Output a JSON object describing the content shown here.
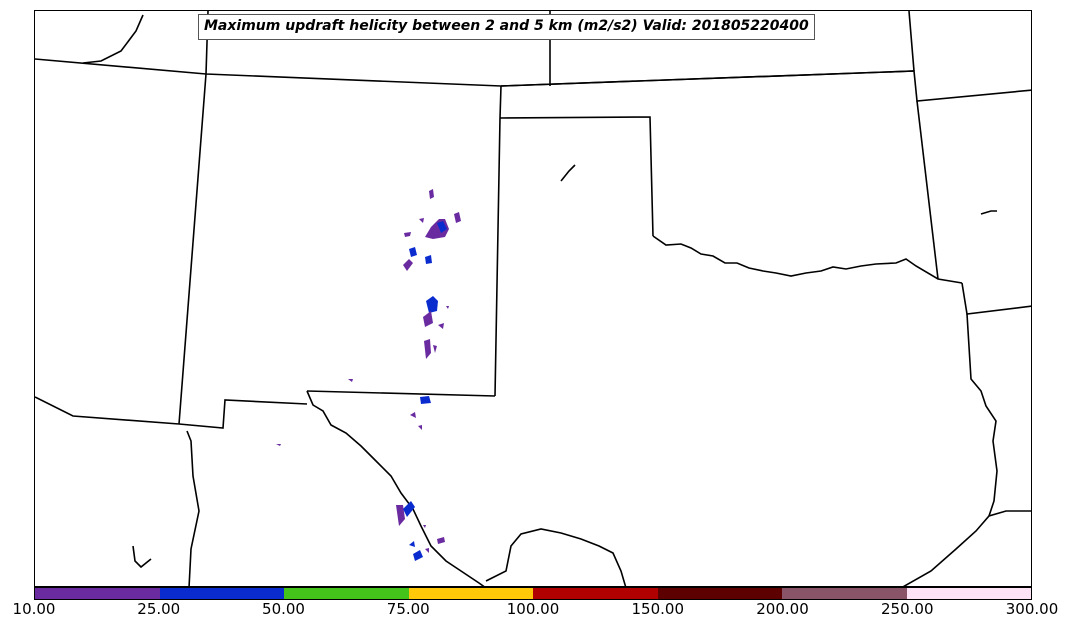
{
  "title": "Maximum updraft helicity between 2 and 5 km (m2/s2) Valid: 201805220400",
  "colorbar": {
    "ticks": [
      "10.00",
      "25.00",
      "50.00",
      "75.00",
      "100.00",
      "150.00",
      "200.00",
      "250.00",
      "300.00"
    ],
    "colors": [
      "#6a2ba0",
      "#0a2ccf",
      "#44c41a",
      "#ffc808",
      "#b00000",
      "#5c0000",
      "#8a5468",
      "#fde3f5"
    ]
  },
  "map": {
    "border_color": "#000000",
    "region": "Southern US Plains (New Mexico, Texas, Oklahoma)"
  }
}
